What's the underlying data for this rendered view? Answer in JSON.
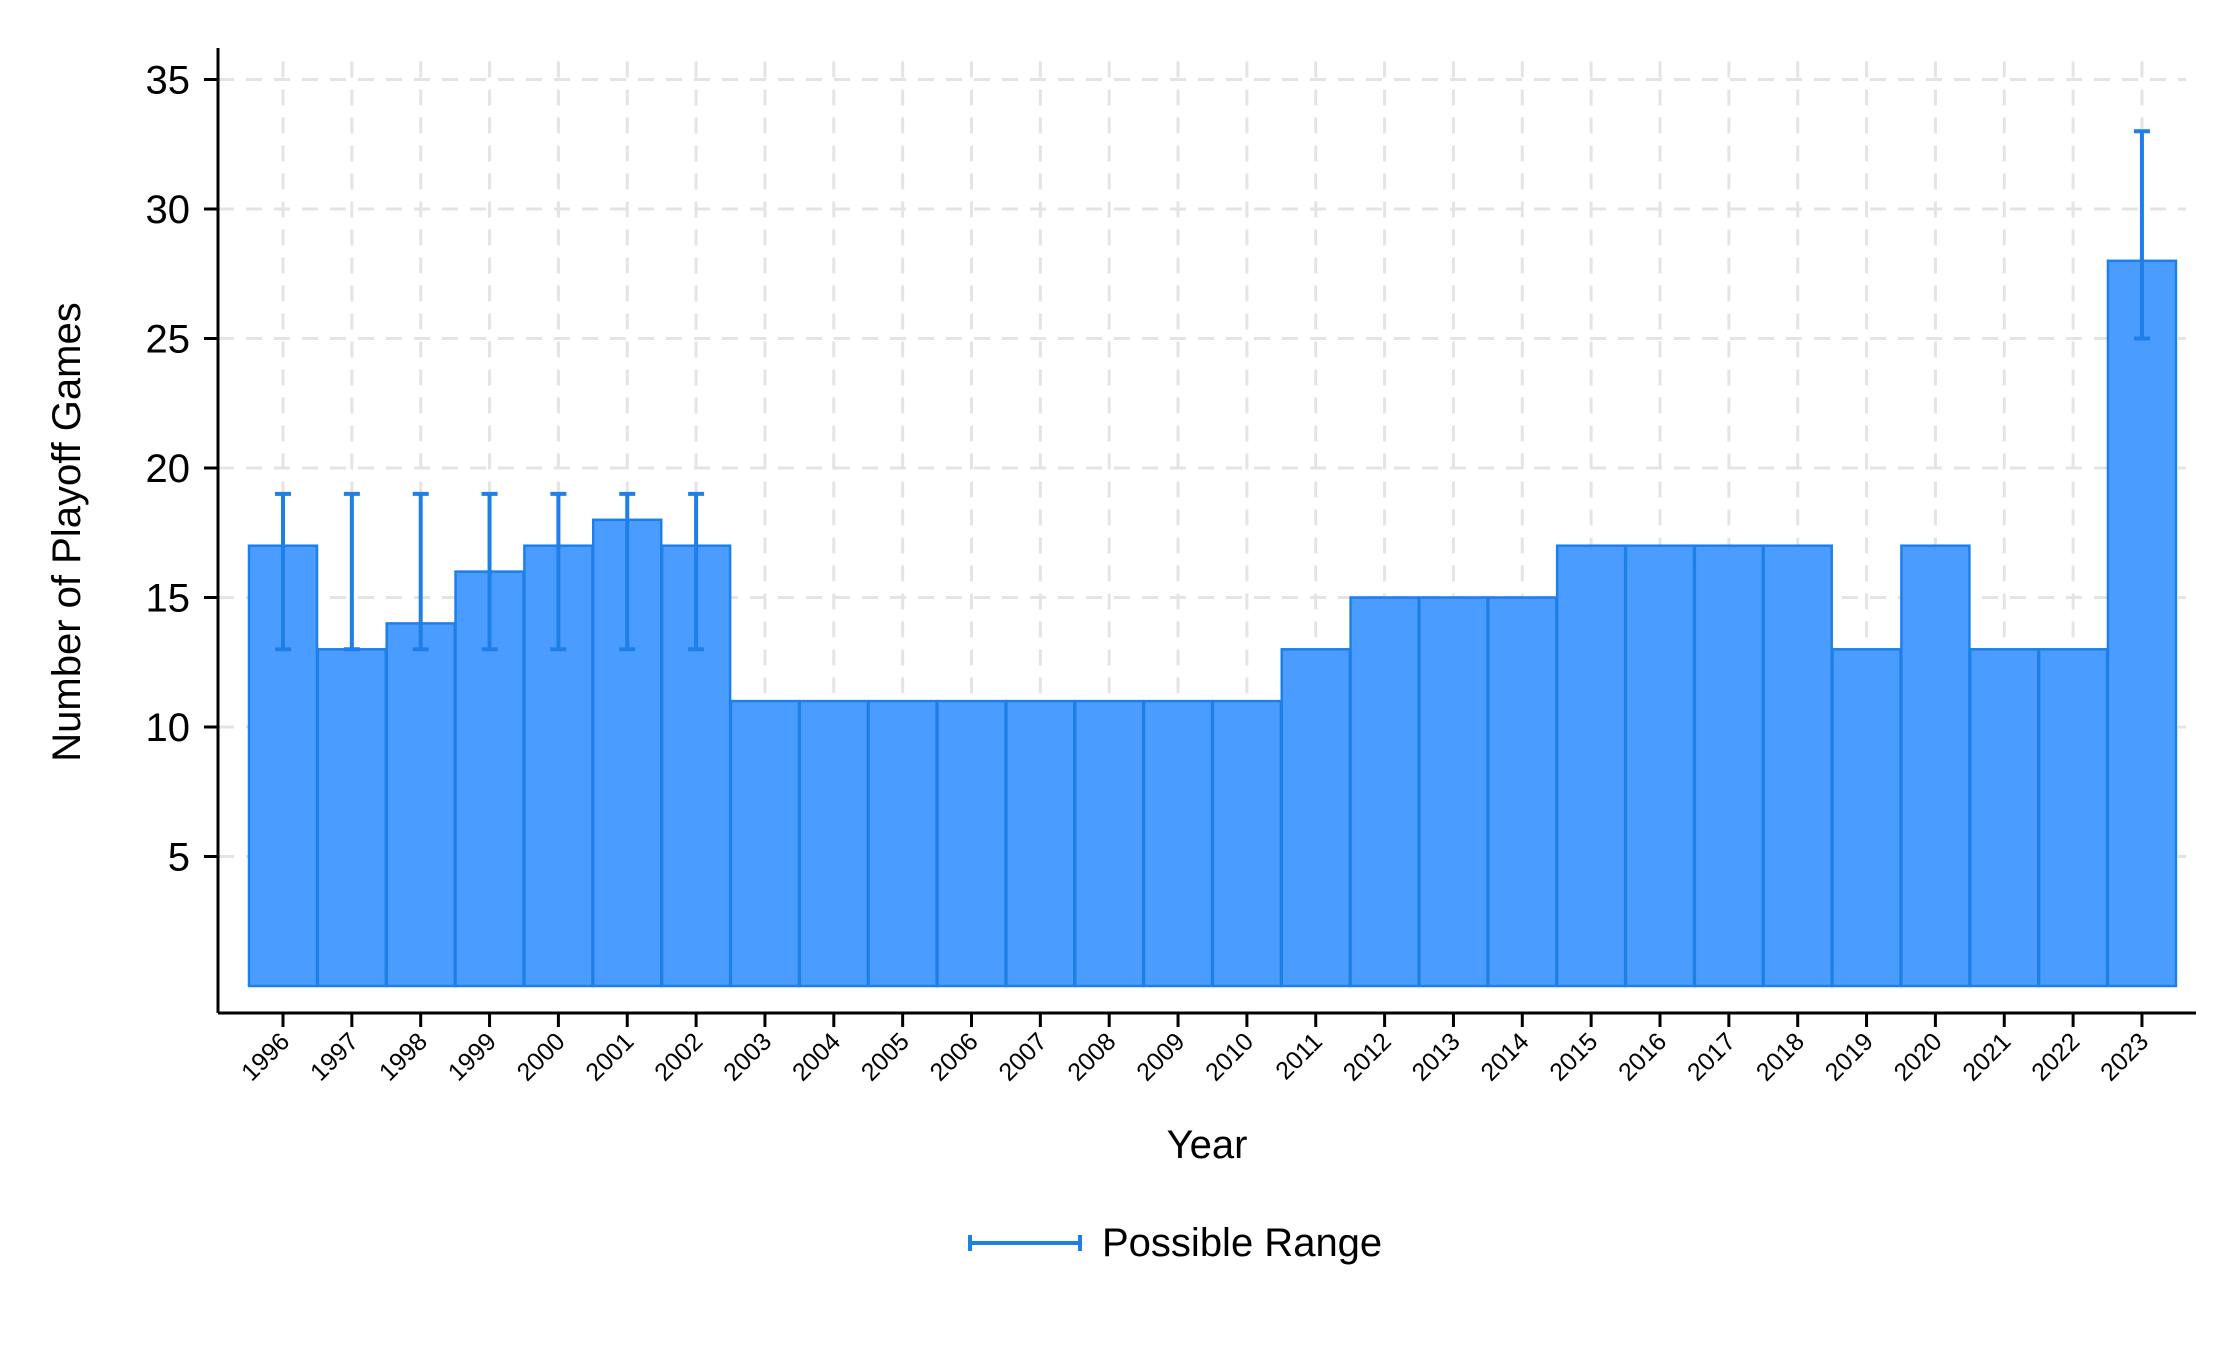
{
  "chart_data": {
    "type": "bar",
    "title": "",
    "xlabel": "Year",
    "ylabel": "Number of Playoff Games",
    "ylim": [
      0,
      35
    ],
    "yticks": [
      5,
      10,
      15,
      20,
      25,
      30,
      35
    ],
    "grid": true,
    "legend_position": "bottom-center",
    "colors": {
      "bar_fill": "#4a9dff",
      "bar_edge": "#1f7fe8",
      "errorbar": "#1f7fe8",
      "grid": "#e4e4e4",
      "axis": "#000000"
    },
    "categories": [
      "1996",
      "1997",
      "1998",
      "1999",
      "2000",
      "2001",
      "2002",
      "2003",
      "2004",
      "2005",
      "2006",
      "2007",
      "2008",
      "2009",
      "2010",
      "2011",
      "2012",
      "2013",
      "2014",
      "2015",
      "2016",
      "2017",
      "2018",
      "2019",
      "2020",
      "2021",
      "2022",
      "2023"
    ],
    "series": [
      {
        "values": [
          17,
          13,
          14,
          16,
          17,
          18,
          17,
          11,
          11,
          11,
          11,
          11,
          11,
          11,
          11,
          13,
          15,
          15,
          15,
          17,
          17,
          17,
          17,
          13,
          17,
          13,
          13,
          28
        ]
      }
    ],
    "ranges": {
      "name": "Possible Range",
      "low": [
        13,
        13,
        13,
        13,
        13,
        13,
        13,
        null,
        null,
        null,
        null,
        null,
        null,
        null,
        null,
        null,
        null,
        null,
        null,
        null,
        null,
        null,
        null,
        null,
        null,
        null,
        null,
        25
      ],
      "high": [
        19,
        19,
        19,
        19,
        19,
        19,
        19,
        null,
        null,
        null,
        null,
        null,
        null,
        null,
        null,
        null,
        null,
        null,
        null,
        null,
        null,
        null,
        null,
        null,
        null,
        null,
        null,
        33
      ]
    }
  }
}
